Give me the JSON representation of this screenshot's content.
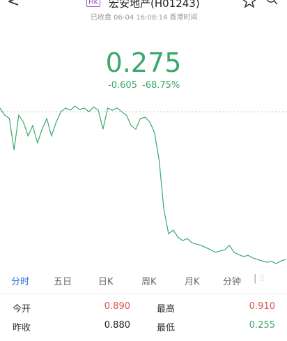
{
  "header": {
    "market": "HK",
    "title": "宏安地产(H01243)",
    "status": "已收盘 06-04 16:08:14 香港时间"
  },
  "quote": {
    "price": "0.275",
    "change": "-0.605",
    "change_pct": "-68.75%"
  },
  "chart_data": {
    "type": "line",
    "color": "#3aa86b",
    "reference": 0.88,
    "ylim": [
      0.235,
      0.939
    ],
    "values": [
      0.896,
      0.867,
      0.853,
      0.723,
      0.867,
      0.838,
      0.781,
      0.824,
      0.752,
      0.809,
      0.853,
      0.781,
      0.838,
      0.881,
      0.896,
      0.887,
      0.904,
      0.89,
      0.896,
      0.881,
      0.901,
      0.887,
      0.809,
      0.896,
      0.887,
      0.896,
      0.881,
      0.867,
      0.824,
      0.809,
      0.853,
      0.858,
      0.838,
      0.795,
      0.68,
      0.479,
      0.378,
      0.393,
      0.364,
      0.35,
      0.358,
      0.341,
      0.335,
      0.33,
      0.321,
      0.312,
      0.301,
      0.307,
      0.312,
      0.33,
      0.301,
      0.292,
      0.284,
      0.289,
      0.278,
      0.272,
      0.266,
      0.261,
      0.264,
      0.255,
      0.266,
      0.272
    ]
  },
  "tabs": [
    "分时",
    "五日",
    "日K",
    "周K",
    "月K",
    "分钟"
  ],
  "stats": [
    [
      {
        "label": "今开",
        "value": "0.890"
      },
      {
        "label": "最高",
        "value": "0.910"
      }
    ],
    [
      {
        "label": "昨收",
        "value": "0.880"
      },
      {
        "label": "最低",
        "value": "0.255"
      }
    ]
  ]
}
